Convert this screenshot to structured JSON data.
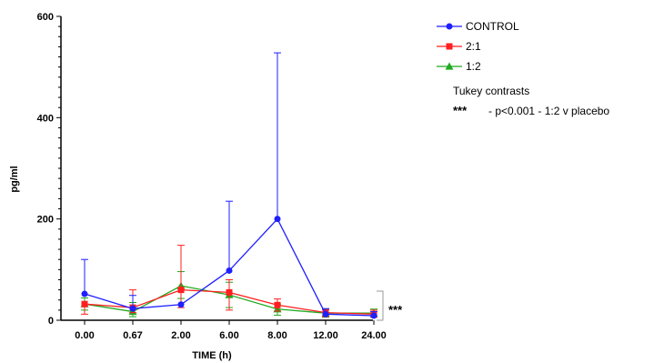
{
  "chart_data": {
    "type": "line",
    "xlabel": "TIME (h)",
    "ylabel": "pg/ml",
    "categories": [
      "0.00",
      "0.67",
      "2.00",
      "6.00",
      "8.00",
      "12.00",
      "24.00"
    ],
    "ylim": [
      0,
      600
    ],
    "yticks": [
      "0",
      "200",
      "400",
      "600"
    ],
    "grid": false,
    "legend_position": "top-right",
    "series": [
      {
        "name": "CONTROL",
        "color": "#1f1fff",
        "marker": "circle",
        "values": [
          52,
          23,
          31,
          98,
          200,
          12,
          9
        ],
        "err_upper": [
          68,
          26,
          0,
          137,
          328,
          11,
          8
        ],
        "err_lower": [
          0,
          0,
          0,
          0,
          0,
          0,
          0
        ]
      },
      {
        "name": "2:1",
        "color": "#ff1f1f",
        "marker": "square",
        "values": [
          32,
          25,
          60,
          55,
          30,
          15,
          12
        ],
        "err_upper": [
          0,
          35,
          88,
          25,
          12,
          6,
          8
        ],
        "err_lower": [
          20,
          10,
          35,
          35,
          12,
          8,
          6
        ]
      },
      {
        "name": "1:2",
        "color": "#1faa1f",
        "marker": "triangle",
        "values": [
          32,
          17,
          68,
          50,
          22,
          14,
          14
        ],
        "err_upper": [
          12,
          18,
          28,
          25,
          10,
          8,
          8
        ],
        "err_lower": [
          12,
          10,
          25,
          25,
          12,
          8,
          8
        ]
      }
    ],
    "annotations": {
      "tukey_title": "Tukey contrasts",
      "tukey_marker": "***",
      "tukey_text": "- p<0.001 - 1:2 v placebo",
      "bracket_marker": "***"
    }
  }
}
